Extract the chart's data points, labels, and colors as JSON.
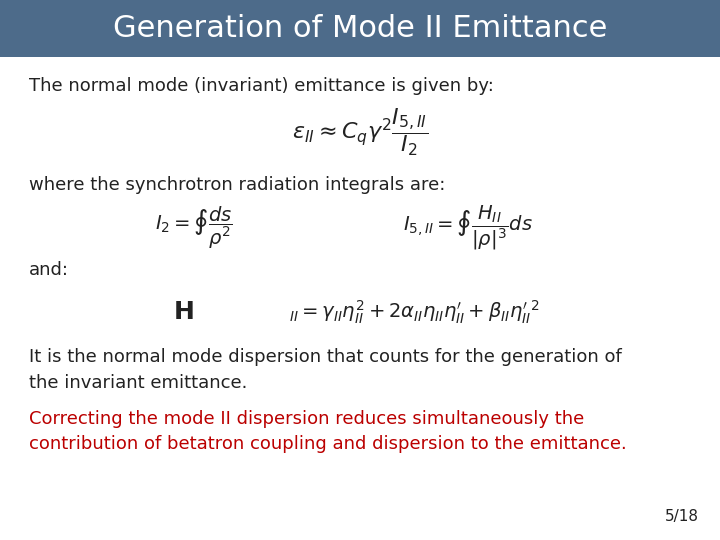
{
  "title": "Generation of Mode II Emittance",
  "title_bg_color": "#4d6b8a",
  "title_text_color": "#ffffff",
  "title_fontsize": 22,
  "bg_color": "#ffffff",
  "text_color": "#222222",
  "red_color": "#bb0000",
  "body_fontsize": 13,
  "page_number": "5/18",
  "line1": "The normal mode (invariant) emittance is given by:",
  "line2": "where the synchrotron radiation integrals are:",
  "line3": "and:",
  "line4a": "It is the normal mode dispersion that counts for the generation of",
  "line4b": "the invariant emittance.",
  "line5a": "Correcting the mode II dispersion reduces simultaneously the",
  "line5b": "contribution of betatron coupling and dispersion to the emittance."
}
